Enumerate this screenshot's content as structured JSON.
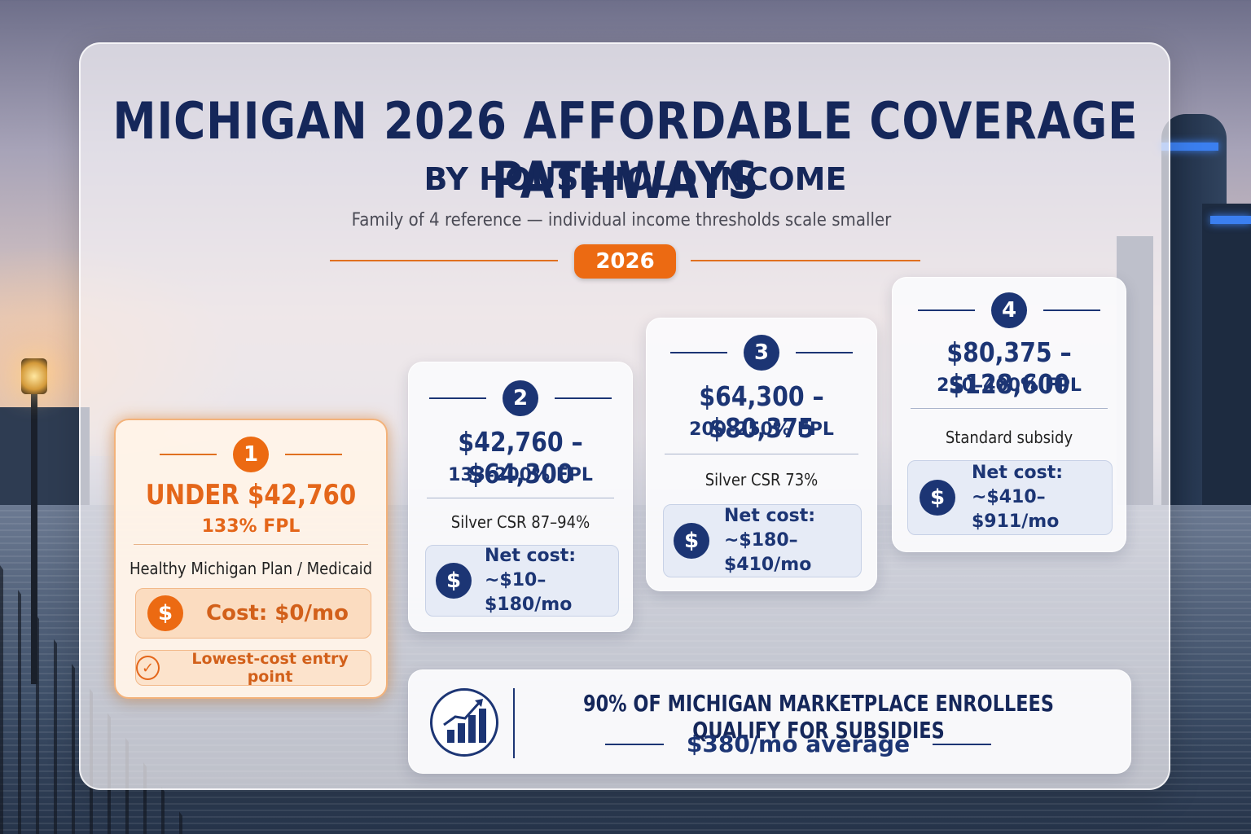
{
  "header": {
    "title": "MICHIGAN 2026 AFFORDABLE COVERAGE PATHWAYS",
    "subtitle": "BY HOUSEHOLD INCOME",
    "note": "Family of 4 reference — individual income thresholds scale smaller",
    "year_badge": "2026"
  },
  "tiers": [
    {
      "number": "1",
      "range": "UNDER $42,760",
      "fpl": "133% FPL",
      "plan": "Healthy Michigan Plan / Medicaid",
      "cost": "Cost: $0/mo",
      "badge": "Lowest-cost entry point"
    },
    {
      "number": "2",
      "range": "$42,760 – $64,300",
      "fpl": "133–200% FPL",
      "plan": "Silver CSR 87–94%",
      "cost_label": "Net cost:",
      "cost_value": "~$10–$180/mo"
    },
    {
      "number": "3",
      "range": "$64,300 – $80,375",
      "fpl": "200–250% FPL",
      "plan": "Silver CSR 73%",
      "cost_label": "Net cost:",
      "cost_value": "~$180–$410/mo"
    },
    {
      "number": "4",
      "range": "$80,375 – $128,600",
      "fpl": "250–400% FPL",
      "plan": "Standard subsidy",
      "cost_label": "Net cost:",
      "cost_value": "~$410–$911/mo"
    }
  ],
  "stat": {
    "headline": "90% OF MICHIGAN MARKETPLACE ENROLLEES QUALIFY FOR SUBSIDIES",
    "average": "$380/mo average"
  },
  "icons": {
    "dollar": "$",
    "check": "✓"
  },
  "colors": {
    "navy": "#1c3574",
    "orange": "#ec6a12"
  }
}
